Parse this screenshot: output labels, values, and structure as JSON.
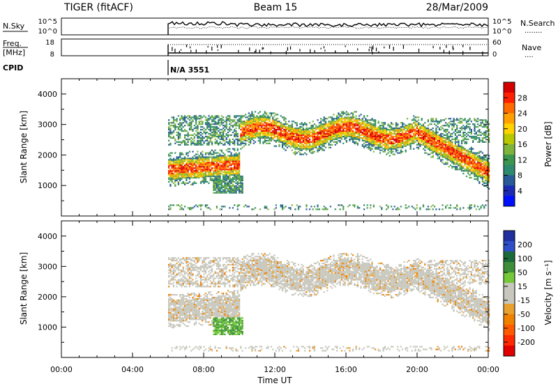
{
  "header": {
    "title": "TIGER (fitACF)",
    "beam": "Beam 15",
    "date": "28/Mar/2009"
  },
  "status_panels": {
    "nsky_label": "N.Sky",
    "nsearch_label": "N.Search",
    "nsearch_marker": "........",
    "freq_label_line1": "Freq.",
    "freq_label_line2": "[MHz]",
    "nave_label": "Nave",
    "nave_marker": "....",
    "cpid_label": "CPID",
    "cpid_value": "N/A 3551",
    "ticks": {
      "nsky_top": "10^5",
      "nsky_bottom": "10^0",
      "nsearch_top": "10^5",
      "nsearch_bottom": "10^0",
      "freq_top": "18",
      "freq_bottom": "8",
      "nave_top": "60",
      "nave_bottom": "0"
    }
  },
  "chart_data": [
    {
      "type": "heatmap",
      "name": "power",
      "ylabel": "Slant Range [km]",
      "ylim": [
        0,
        4500
      ],
      "yticks": [
        "1000",
        "2000",
        "3000",
        "4000"
      ],
      "xlim": [
        0,
        24
      ],
      "colorbar": {
        "label": "Power [dB]",
        "ticks": [
          "28",
          "24",
          "20",
          "16",
          "12",
          "8",
          "4"
        ],
        "colors": [
          "#d40000",
          "#ff2000",
          "#ff6a00",
          "#ffa000",
          "#ffd200",
          "#b8c800",
          "#7fb43c",
          "#3c9650",
          "#2e8a6e",
          "#285a96",
          "#1c2ab4",
          "#0010ff"
        ]
      }
    },
    {
      "type": "heatmap",
      "name": "velocity",
      "ylabel": "Slant Range [km]",
      "xlabel": "Time UT",
      "ylim": [
        0,
        4500
      ],
      "yticks": [
        "1000",
        "2000",
        "3000",
        "4000"
      ],
      "xlim": [
        0,
        24
      ],
      "xticks": [
        "00:00",
        "04:00",
        "08:00",
        "12:00",
        "16:00",
        "20:00",
        "00:00"
      ],
      "colorbar": {
        "label": "Velocity [m s⁻¹]",
        "ticks": [
          "200",
          "100",
          "50",
          "15",
          "-15",
          "-50",
          "-100",
          "-200"
        ],
        "colors": [
          "#1f2f9e",
          "#2e4fc8",
          "#1c6a3c",
          "#3f8f3a",
          "#74c83a",
          "#c7c7bd",
          "#c7c7bd",
          "#e8a030",
          "#f08000",
          "#ff5a00",
          "#ff2a00",
          "#e00000"
        ]
      }
    }
  ]
}
